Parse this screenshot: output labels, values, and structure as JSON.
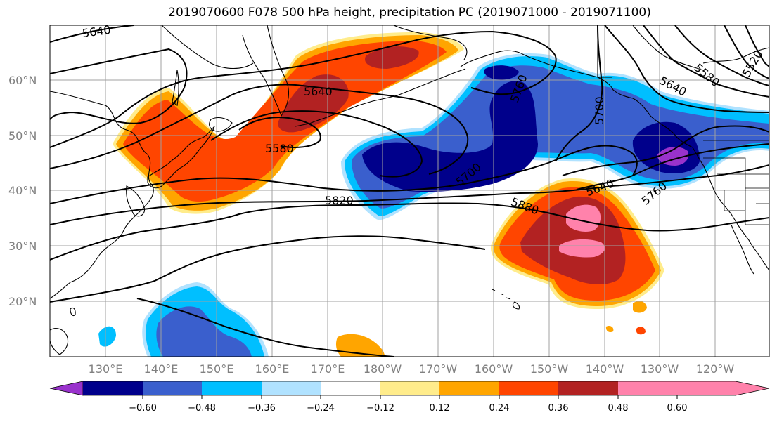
{
  "title": "2019070600 F078 500 hPa height, precipitation PC (2019071000 - 2019071100)",
  "lat_labels": [
    "60°N",
    "50°N",
    "40°N",
    "30°N",
    "20°N"
  ],
  "lon_labels": [
    "130°E",
    "140°E",
    "150°E",
    "160°E",
    "170°E",
    "180°W",
    "170°W",
    "160°W",
    "150°W",
    "140°W",
    "130°W",
    "120°W"
  ],
  "height_contour_labels": [
    "5640",
    "5640",
    "5580",
    "5820",
    "5880",
    "5700",
    "5760",
    "5700",
    "5640",
    "5760",
    "5640",
    "5580",
    "5520"
  ],
  "colorbar": {
    "tick_labels": [
      "−0.60",
      "−0.48",
      "−0.36",
      "−0.24",
      "−0.12",
      "0.12",
      "0.24",
      "0.36",
      "0.48",
      "0.60"
    ],
    "colors": [
      "#9932CC",
      "#00008B",
      "#3A5FCD",
      "#00BFFF",
      "#B0E2FF",
      "#FFFFFF",
      "#FFEC8B",
      "#FFA500",
      "#FF4500",
      "#B22222",
      "#FF82AB"
    ]
  }
}
